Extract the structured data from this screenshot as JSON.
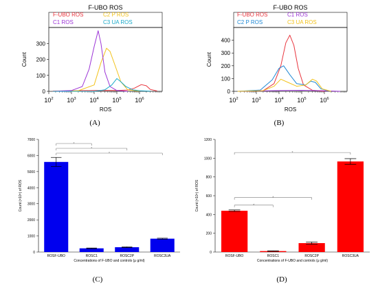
{
  "figure": {
    "panels": {
      "A": "(A)",
      "B": "(B)",
      "C": "(C)",
      "D": "(D)"
    }
  },
  "chart_data": [
    {
      "id": "A",
      "type": "line",
      "title": "F-UBO ROS",
      "xlabel": "ROS",
      "ylabel": "Count",
      "xscale": "log",
      "xlim": [
        100,
        10000000
      ],
      "ylim": [
        0,
        400
      ],
      "yticks": [
        0,
        100,
        200,
        300
      ],
      "xticks": [
        "10^2",
        "10^3",
        "10^4",
        "10^5",
        "10^6"
      ],
      "legend": [
        "F-UBO ROS",
        "C2 P ROS",
        "C1 ROS",
        "C3 UA ROS"
      ],
      "series": [
        {
          "name": "F-UBO ROS",
          "color": "#e8333c",
          "x": [
            150,
            1000,
            10000,
            30000,
            100000,
            300000,
            600000,
            1200000,
            2000000,
            3000000,
            6000000
          ],
          "y": [
            2,
            3,
            5,
            6,
            5,
            8,
            20,
            42,
            35,
            12,
            2
          ]
        },
        {
          "name": "C2 P ROS",
          "color": "#f2c21b",
          "x": [
            150,
            2000,
            10000,
            20000,
            35000,
            50000,
            80000,
            150000,
            300000,
            1000000
          ],
          "y": [
            0,
            4,
            40,
            180,
            270,
            250,
            170,
            60,
            10,
            1
          ]
        },
        {
          "name": "C1 ROS",
          "color": "#9b33d6",
          "x": [
            150,
            1000,
            3000,
            6000,
            10000,
            15000,
            20000,
            30000,
            50000,
            100000,
            300000
          ],
          "y": [
            0,
            5,
            30,
            140,
            280,
            380,
            300,
            120,
            30,
            5,
            0
          ]
        },
        {
          "name": "C3 UA ROS",
          "color": "#1aa9c9",
          "x": [
            150,
            10000,
            30000,
            60000,
            100000,
            150000,
            250000,
            500000,
            1000000,
            3000000
          ],
          "y": [
            0,
            0,
            10,
            40,
            80,
            60,
            30,
            10,
            4,
            1
          ]
        }
      ]
    },
    {
      "id": "B",
      "type": "line",
      "title": "F-UBO ROS",
      "xlabel": "ROS",
      "ylabel": "Count",
      "xscale": "log",
      "xlim": [
        100,
        10000000
      ],
      "ylim": [
        0,
        500
      ],
      "yticks": [
        0,
        100,
        200,
        300,
        400
      ],
      "xticks": [
        "10^2",
        "10^3",
        "10^4",
        "10^5",
        "10^6"
      ],
      "legend": [
        "F-UBO ROS",
        "C1 ROS",
        "C2 P ROS",
        "C3 UA ROS"
      ],
      "series": [
        {
          "name": "F-UBO ROS",
          "color": "#e8333c",
          "x": [
            150,
            2000,
            6000,
            12000,
            20000,
            30000,
            45000,
            70000,
            120000,
            300000,
            1000000
          ],
          "y": [
            0,
            5,
            60,
            200,
            380,
            440,
            360,
            180,
            50,
            8,
            0
          ]
        },
        {
          "name": "C1 ROS",
          "color": "#9b33d6",
          "x": [
            150,
            10000,
            100000,
            1000000,
            5000000
          ],
          "y": [
            0,
            6,
            8,
            5,
            0
          ]
        },
        {
          "name": "C2 P ROS",
          "color": "#1f88d4",
          "x": [
            150,
            1500,
            5000,
            10000,
            16000,
            30000,
            60000,
            150000,
            250000,
            400000,
            700000,
            2000000
          ],
          "y": [
            0,
            10,
            90,
            180,
            200,
            130,
            60,
            50,
            80,
            70,
            20,
            0
          ]
        },
        {
          "name": "C3 UA ROS",
          "color": "#f2c21b",
          "x": [
            150,
            2000,
            6000,
            12000,
            25000,
            60000,
            150000,
            300000,
            450000,
            800000,
            2000000
          ],
          "y": [
            0,
            5,
            40,
            95,
            70,
            40,
            50,
            95,
            80,
            20,
            0
          ]
        }
      ]
    },
    {
      "id": "C",
      "type": "bar",
      "color": "#0000ee",
      "categories": [
        "ROSF-UBO",
        "ROSC1",
        "ROSC2P",
        "ROSC3UA"
      ],
      "values": [
        5600,
        230,
        300,
        830
      ],
      "errors": [
        280,
        20,
        25,
        30
      ],
      "ylim": [
        0,
        7000
      ],
      "yticks": [
        0,
        1000,
        2000,
        3000,
        4000,
        5000,
        6000,
        7000
      ],
      "xlabel": "Concentrations of F-UBO and controls (μ g/ml)",
      "ylabel": "Count (×10⁵) of ROS",
      "significance": [
        {
          "from": 0,
          "to": 1,
          "label": "*"
        },
        {
          "from": 0,
          "to": 2,
          "label": "*"
        },
        {
          "from": 0,
          "to": 3,
          "label": "*"
        }
      ]
    },
    {
      "id": "D",
      "type": "bar",
      "color": "#ff0000",
      "categories": [
        "ROSF-UBO",
        "ROSC1",
        "ROSC2P",
        "ROSC3UA"
      ],
      "values": [
        440,
        10,
        95,
        965
      ],
      "errors": [
        8,
        3,
        12,
        30
      ],
      "ylim": [
        0,
        1200
      ],
      "yticks": [
        0,
        200,
        400,
        600,
        800,
        1000,
        1200
      ],
      "xlabel": "Concentrations of F-UBO and controls (μ g/ml)",
      "ylabel": "Count (×10⁵) of ROS",
      "significance": [
        {
          "from": 0,
          "to": 1,
          "label": "*"
        },
        {
          "from": 0,
          "to": 2,
          "label": "*"
        },
        {
          "from": 0,
          "to": 3,
          "label": "*"
        }
      ]
    }
  ]
}
